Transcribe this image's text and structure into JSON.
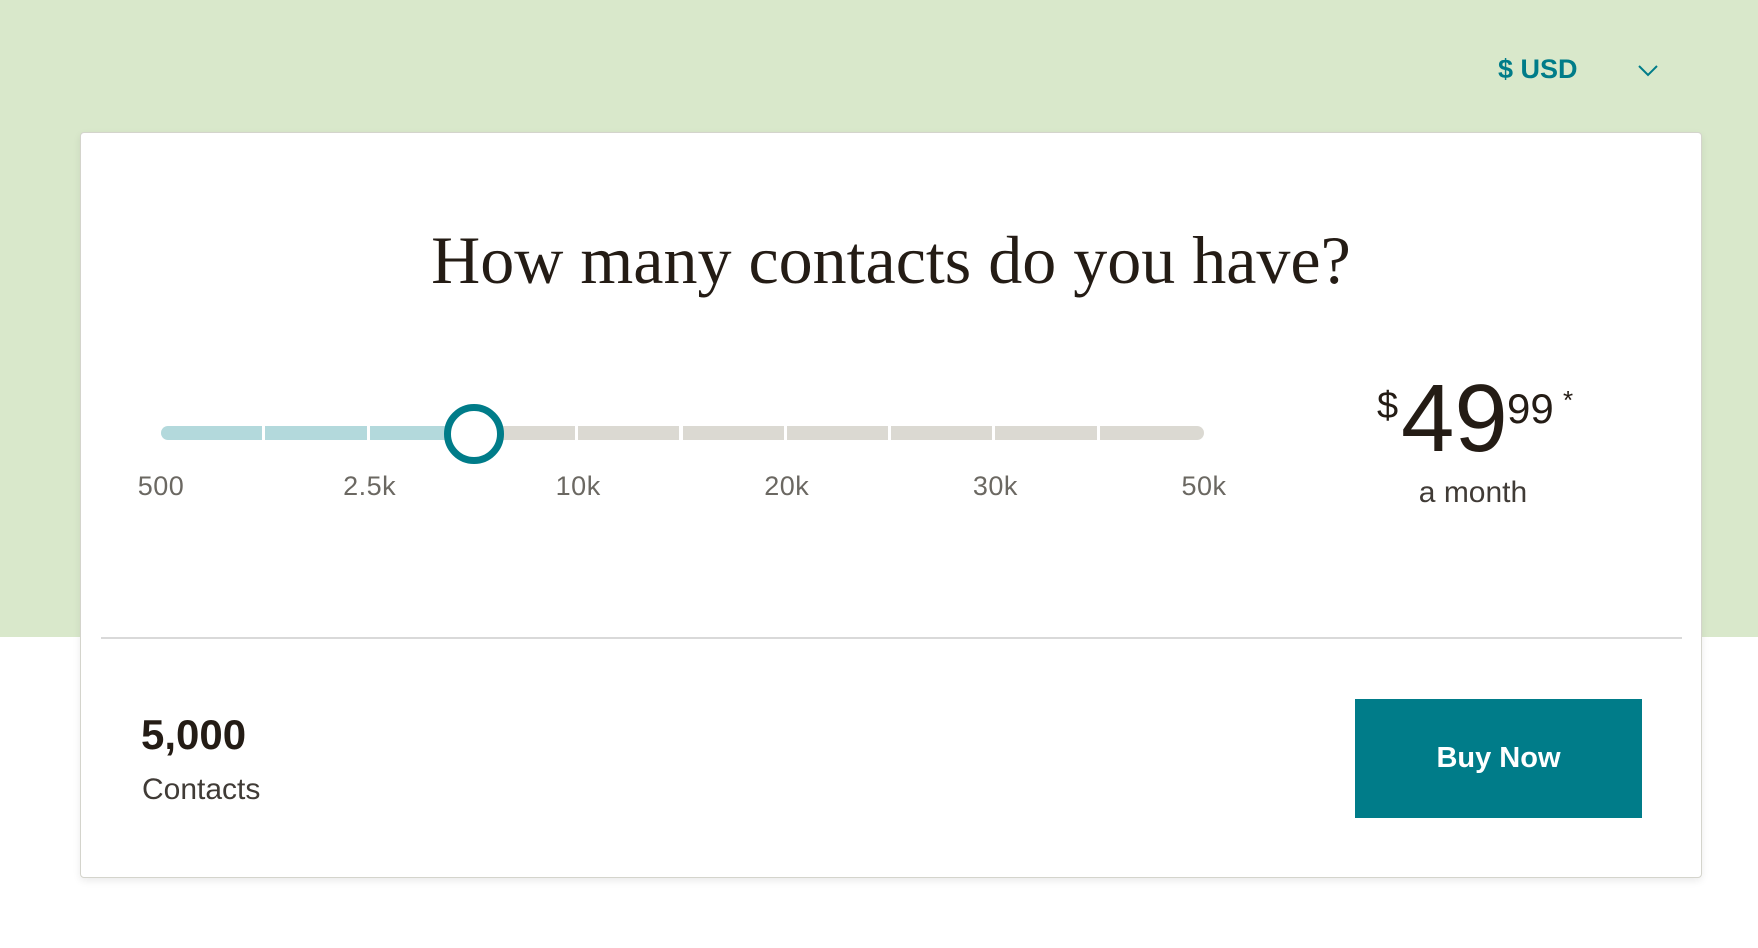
{
  "currency": {
    "label": "$ USD",
    "icon": "chevron-down-icon"
  },
  "card": {
    "title": "How many contacts do you have?",
    "slider": {
      "ticks": [
        "500",
        "2.5k",
        "10k",
        "20k",
        "30k",
        "50k"
      ],
      "segments": 10,
      "value_fraction": 0.3,
      "fill_color": "#b3d9dc",
      "empty_color": "#dbd9d2",
      "thumb_color": "#007c89"
    },
    "price": {
      "currency_symbol": "$",
      "whole": "49",
      "cents": "99",
      "asterisk": "*",
      "period": "a month"
    },
    "contacts": {
      "count": "5,000",
      "label": "Contacts"
    },
    "buy_button": {
      "label": "Buy Now",
      "color": "#007c89"
    }
  }
}
